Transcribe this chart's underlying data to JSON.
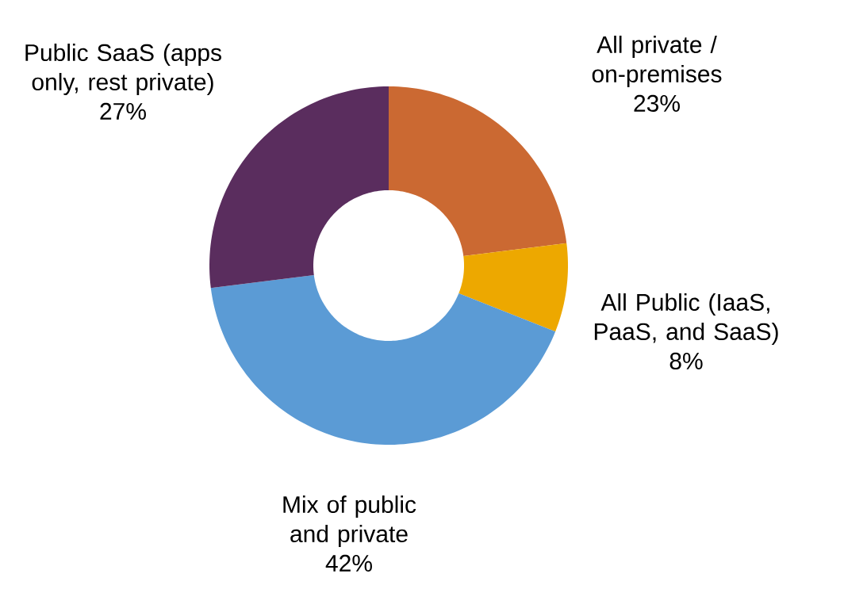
{
  "chart_data": {
    "type": "donut",
    "categories": [
      "All private / on-premises",
      "All Public (IaaS, PaaS, and SaaS)",
      "Mix of public and private",
      "Public SaaS (apps only, rest private)"
    ],
    "values": [
      23,
      8,
      42,
      27
    ],
    "colors": [
      "#cb6932",
      "#eda800",
      "#5b9bd5",
      "#5a2d5e"
    ],
    "value_labels": [
      "23%",
      "8%",
      "42%",
      "27%"
    ]
  }
}
